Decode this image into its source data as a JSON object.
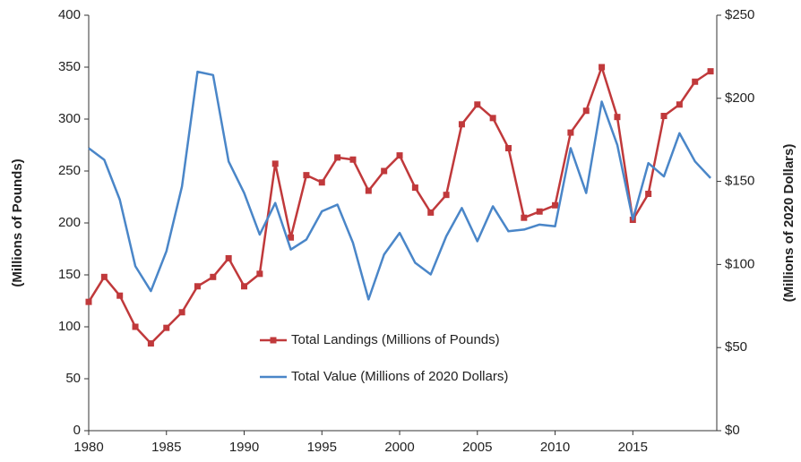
{
  "chart_data": {
    "type": "line",
    "x": [
      1980,
      1981,
      1982,
      1983,
      1984,
      1985,
      1986,
      1987,
      1988,
      1989,
      1990,
      1991,
      1992,
      1993,
      1994,
      1995,
      1996,
      1997,
      1998,
      1999,
      2000,
      2001,
      2002,
      2003,
      2004,
      2005,
      2006,
      2007,
      2008,
      2009,
      2010,
      2011,
      2012,
      2013,
      2014,
      2015,
      2016,
      2017,
      2018,
      2019,
      2020
    ],
    "series": [
      {
        "name": "Total Landings (Millions of Pounds)",
        "color": "#c0393b",
        "marker": "square",
        "axis": "y",
        "values": [
          124,
          148,
          130,
          100,
          84,
          99,
          114,
          139,
          148,
          166,
          139,
          151,
          257,
          186,
          246,
          239,
          263,
          261,
          231,
          250,
          265,
          234,
          210,
          227,
          295,
          314,
          301,
          272,
          205,
          211,
          217,
          287,
          308,
          350,
          302,
          203,
          228,
          303,
          314,
          336,
          346
        ]
      },
      {
        "name": "Total Value (Millions of 2020 Dollars)",
        "color": "#4a86c8",
        "axis": "y2",
        "values": [
          170,
          163,
          139,
          99,
          84,
          108,
          147,
          216,
          214,
          162,
          143,
          118,
          137,
          109,
          115,
          132,
          136,
          113,
          79,
          106,
          119,
          101,
          94,
          117,
          134,
          114,
          135,
          120,
          121,
          124,
          123,
          170,
          143,
          198,
          172,
          127,
          161,
          153,
          179,
          162,
          152
        ]
      }
    ],
    "ylabel": "(Millions of Pounds)",
    "y2label": "(Millions of 2020 Dollars)",
    "xlim": [
      1980,
      2020.4
    ],
    "xticks": [
      1980,
      1985,
      1990,
      1995,
      2000,
      2005,
      2010,
      2015
    ],
    "ylim": [
      0,
      400
    ],
    "yticks": [
      0,
      50,
      100,
      150,
      200,
      250,
      300,
      350,
      400
    ],
    "y2lim": [
      0,
      250
    ],
    "y2ticks": [
      {
        "value": 0,
        "label": "$0"
      },
      {
        "value": 50,
        "label": "$50"
      },
      {
        "value": 100,
        "label": "$100"
      },
      {
        "value": 150,
        "label": "$150"
      },
      {
        "value": 200,
        "label": "$200"
      },
      {
        "value": 250,
        "label": "$250"
      }
    ],
    "grid": false
  }
}
